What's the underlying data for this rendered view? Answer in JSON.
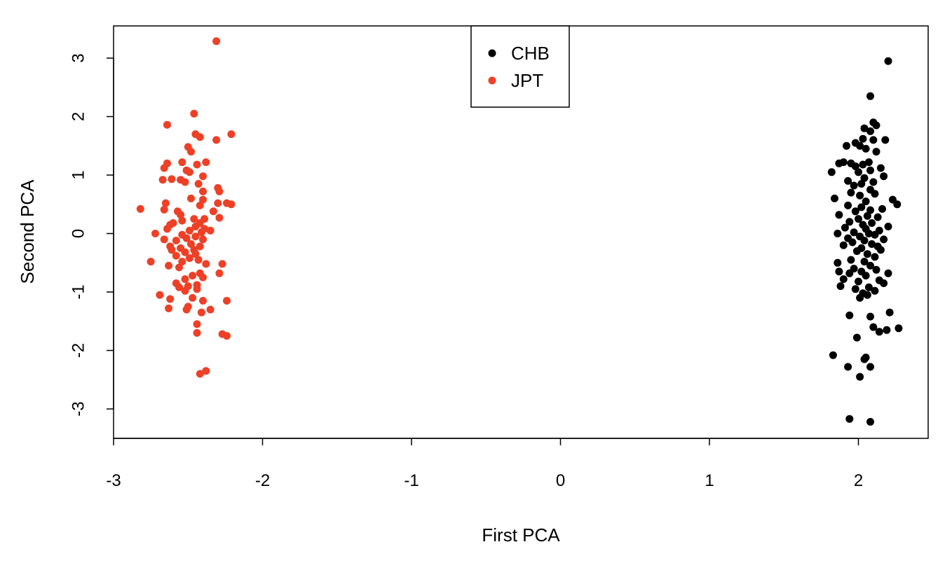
{
  "chart_data": {
    "type": "scatter",
    "title": "",
    "xlabel": "First PCA",
    "ylabel": "Second PCA",
    "xlim": [
      -3,
      2.5
    ],
    "ylim": [
      -3.5,
      3.5
    ],
    "x_ticks": [
      -3,
      -2,
      -1,
      0,
      1,
      2
    ],
    "y_ticks": [
      -3,
      -2,
      -1,
      0,
      1,
      2,
      3
    ],
    "x_tick_labels": [
      "-3",
      "-2",
      "-1",
      "0",
      "1",
      "2"
    ],
    "y_tick_labels": [
      "-3",
      "-2",
      "-1",
      "0",
      "1",
      "2",
      "3"
    ],
    "grid": false,
    "legend_position": "top-center",
    "series": [
      {
        "name": "CHB",
        "color": "#000000",
        "points": [
          [
            2.2,
            2.95
          ],
          [
            2.08,
            2.35
          ],
          [
            2.1,
            1.9
          ],
          [
            2.04,
            1.8
          ],
          [
            2.12,
            1.85
          ],
          [
            2.08,
            1.75
          ],
          [
            2.03,
            1.62
          ],
          [
            1.98,
            1.55
          ],
          [
            2.1,
            1.6
          ],
          [
            2.18,
            1.6
          ],
          [
            1.92,
            1.5
          ],
          [
            2.01,
            1.5
          ],
          [
            2.05,
            1.45
          ],
          [
            2.12,
            1.4
          ],
          [
            1.9,
            1.22
          ],
          [
            1.95,
            1.2
          ],
          [
            2.03,
            1.18
          ],
          [
            2.07,
            1.22
          ],
          [
            1.87,
            1.2
          ],
          [
            1.98,
            1.15
          ],
          [
            2.15,
            1.12
          ],
          [
            2.0,
            1.05
          ],
          [
            1.82,
            1.05
          ],
          [
            2.08,
            1.08
          ],
          [
            2.04,
            0.95
          ],
          [
            2.17,
            0.98
          ],
          [
            1.93,
            0.9
          ],
          [
            2.1,
            0.88
          ],
          [
            2.02,
            0.85
          ],
          [
            1.97,
            0.82
          ],
          [
            2.08,
            0.75
          ],
          [
            1.95,
            0.7
          ],
          [
            2.11,
            0.68
          ],
          [
            2.01,
            0.65
          ],
          [
            1.84,
            0.6
          ],
          [
            2.23,
            0.58
          ],
          [
            2.05,
            0.55
          ],
          [
            2.26,
            0.5
          ],
          [
            1.93,
            0.48
          ],
          [
            2.02,
            0.45
          ],
          [
            2.08,
            0.4
          ],
          [
            2.16,
            0.42
          ],
          [
            1.98,
            0.38
          ],
          [
            1.87,
            0.32
          ],
          [
            2.06,
            0.3
          ],
          [
            2.13,
            0.28
          ],
          [
            2.0,
            0.25
          ],
          [
            1.94,
            0.2
          ],
          [
            2.09,
            0.18
          ],
          [
            2.03,
            0.15
          ],
          [
            2.2,
            0.12
          ],
          [
            1.91,
            0.1
          ],
          [
            2.05,
            0.08
          ],
          [
            2.14,
            0.05
          ],
          [
            1.97,
            0.02
          ],
          [
            2.07,
            0.0
          ],
          [
            1.86,
            0.0
          ],
          [
            2.11,
            -0.02
          ],
          [
            2.01,
            -0.05
          ],
          [
            1.93,
            -0.08
          ],
          [
            2.17,
            -0.1
          ],
          [
            2.04,
            -0.12
          ],
          [
            1.96,
            -0.15
          ],
          [
            2.09,
            -0.18
          ],
          [
            1.9,
            -0.2
          ],
          [
            2.13,
            -0.22
          ],
          [
            2.02,
            -0.25
          ],
          [
            2.15,
            -0.28
          ],
          [
            1.99,
            -0.3
          ],
          [
            2.06,
            -0.35
          ],
          [
            2.11,
            -0.4
          ],
          [
            1.95,
            -0.45
          ],
          [
            2.04,
            -0.48
          ],
          [
            1.86,
            -0.5
          ],
          [
            2.08,
            -0.55
          ],
          [
            1.97,
            -0.6
          ],
          [
            2.12,
            -0.62
          ],
          [
            2.02,
            -0.65
          ],
          [
            1.94,
            -0.68
          ],
          [
            2.2,
            -0.68
          ],
          [
            1.87,
            -0.65
          ],
          [
            2.05,
            -0.72
          ],
          [
            1.9,
            -0.78
          ],
          [
            2.14,
            -0.8
          ],
          [
            2.0,
            -0.82
          ],
          [
            2.17,
            -0.85
          ],
          [
            1.88,
            -0.9
          ],
          [
            2.07,
            -0.92
          ],
          [
            1.98,
            -0.95
          ],
          [
            2.11,
            -0.98
          ],
          [
            2.03,
            -1.02
          ],
          [
            2.06,
            -1.05
          ],
          [
            2.01,
            -1.1
          ],
          [
            1.94,
            -1.4
          ],
          [
            2.08,
            -1.42
          ],
          [
            2.21,
            -1.35
          ],
          [
            2.1,
            -1.6
          ],
          [
            2.14,
            -1.68
          ],
          [
            2.19,
            -1.65
          ],
          [
            2.27,
            -1.62
          ],
          [
            1.99,
            -1.78
          ],
          [
            1.83,
            -2.08
          ],
          [
            2.05,
            -2.12
          ],
          [
            2.04,
            -2.15
          ],
          [
            1.93,
            -2.28
          ],
          [
            2.08,
            -2.28
          ],
          [
            2.01,
            -2.45
          ],
          [
            1.94,
            -3.17
          ],
          [
            2.08,
            -3.22
          ]
        ]
      },
      {
        "name": "JPT",
        "color": "#ee4026",
        "points": [
          [
            -2.31,
            3.29
          ],
          [
            -2.46,
            2.05
          ],
          [
            -2.64,
            1.86
          ],
          [
            -2.45,
            1.7
          ],
          [
            -2.21,
            1.7
          ],
          [
            -2.42,
            1.65
          ],
          [
            -2.31,
            1.6
          ],
          [
            -2.5,
            1.48
          ],
          [
            -2.48,
            1.4
          ],
          [
            -2.64,
            1.2
          ],
          [
            -2.38,
            1.22
          ],
          [
            -2.54,
            1.22
          ],
          [
            -2.66,
            1.12
          ],
          [
            -2.44,
            1.18
          ],
          [
            -2.51,
            1.08
          ],
          [
            -2.49,
            1.05
          ],
          [
            -2.4,
            0.98
          ],
          [
            -2.55,
            0.92
          ],
          [
            -2.67,
            0.92
          ],
          [
            -2.61,
            0.93
          ],
          [
            -2.52,
            0.88
          ],
          [
            -2.43,
            0.85
          ],
          [
            -2.3,
            0.78
          ],
          [
            -2.29,
            0.72
          ],
          [
            -2.4,
            0.72
          ],
          [
            -2.48,
            0.6
          ],
          [
            -2.4,
            0.58
          ],
          [
            -2.65,
            0.52
          ],
          [
            -2.24,
            0.52
          ],
          [
            -2.3,
            0.52
          ],
          [
            -2.21,
            0.5
          ],
          [
            -2.42,
            0.48
          ],
          [
            -2.82,
            0.42
          ],
          [
            -2.66,
            0.41
          ],
          [
            -2.57,
            0.38
          ],
          [
            -2.33,
            0.38
          ],
          [
            -2.55,
            0.32
          ],
          [
            -2.29,
            0.27
          ],
          [
            -2.46,
            0.25
          ],
          [
            -2.39,
            0.25
          ],
          [
            -2.54,
            0.22
          ],
          [
            -2.6,
            0.18
          ],
          [
            -2.42,
            0.18
          ],
          [
            -2.62,
            0.15
          ],
          [
            -2.45,
            0.12
          ],
          [
            -2.39,
            0.08
          ],
          [
            -2.64,
            0.08
          ],
          [
            -2.49,
            0.05
          ],
          [
            -2.35,
            0.05
          ],
          [
            -2.41,
            0.02
          ],
          [
            -2.72,
            0.0
          ],
          [
            -2.54,
            -0.02
          ],
          [
            -2.45,
            -0.05
          ],
          [
            -2.51,
            -0.08
          ],
          [
            -2.66,
            -0.1
          ],
          [
            -2.4,
            -0.1
          ],
          [
            -2.58,
            -0.12
          ],
          [
            -2.48,
            -0.18
          ],
          [
            -2.62,
            -0.22
          ],
          [
            -2.42,
            -0.22
          ],
          [
            -2.55,
            -0.25
          ],
          [
            -2.46,
            -0.28
          ],
          [
            -2.61,
            -0.28
          ],
          [
            -2.52,
            -0.32
          ],
          [
            -2.45,
            -0.35
          ],
          [
            -2.58,
            -0.38
          ],
          [
            -2.49,
            -0.42
          ],
          [
            -2.43,
            -0.45
          ],
          [
            -2.54,
            -0.48
          ],
          [
            -2.75,
            -0.48
          ],
          [
            -2.38,
            -0.52
          ],
          [
            -2.27,
            -0.52
          ],
          [
            -2.63,
            -0.55
          ],
          [
            -2.56,
            -0.58
          ],
          [
            -2.42,
            -0.68
          ],
          [
            -2.29,
            -0.68
          ],
          [
            -2.47,
            -0.72
          ],
          [
            -2.4,
            -0.75
          ],
          [
            -2.52,
            -0.78
          ],
          [
            -2.58,
            -0.85
          ],
          [
            -2.44,
            -0.88
          ],
          [
            -2.5,
            -0.9
          ],
          [
            -2.56,
            -0.92
          ],
          [
            -2.44,
            -0.95
          ],
          [
            -2.52,
            -0.98
          ],
          [
            -2.69,
            -1.05
          ],
          [
            -2.47,
            -1.1
          ],
          [
            -2.62,
            -1.12
          ],
          [
            -2.4,
            -1.15
          ],
          [
            -2.24,
            -1.15
          ],
          [
            -2.5,
            -1.25
          ],
          [
            -2.63,
            -1.28
          ],
          [
            -2.51,
            -1.3
          ],
          [
            -2.35,
            -1.3
          ],
          [
            -2.41,
            -1.35
          ],
          [
            -2.44,
            -1.55
          ],
          [
            -2.44,
            -1.7
          ],
          [
            -2.27,
            -1.72
          ],
          [
            -2.24,
            -1.75
          ],
          [
            -2.38,
            -2.35
          ],
          [
            -2.42,
            -2.4
          ]
        ]
      }
    ]
  }
}
